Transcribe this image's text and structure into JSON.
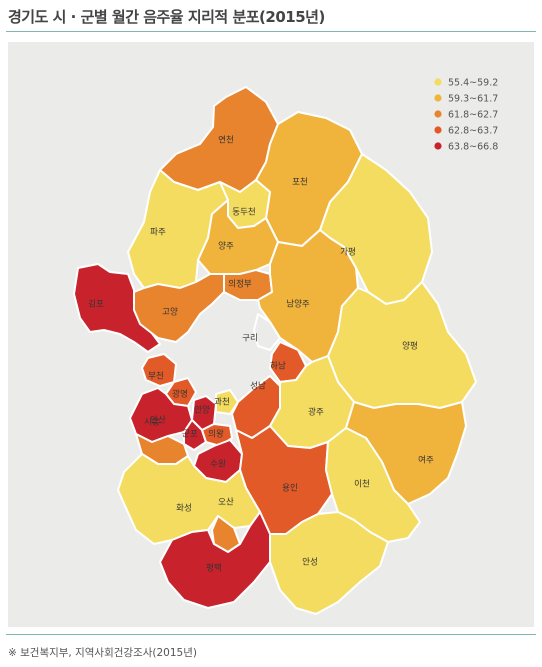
{
  "title": "경기도 시 · 군별 월간 음주율 지리적 분포(2015년)",
  "source": "※ 보건복지부, 지역사회건강조사(2015년)",
  "legend": [
    {
      "label": "55.4~59.2",
      "color": "#f3dc5f"
    },
    {
      "label": "59.3~61.7",
      "color": "#f0b43c"
    },
    {
      "label": "61.8~62.7",
      "color": "#e8842e"
    },
    {
      "label": "62.8~63.7",
      "color": "#e25a27"
    },
    {
      "label": "63.8~66.8",
      "color": "#c8232c"
    }
  ],
  "regions": [
    {
      "name": "연천",
      "class": 2
    },
    {
      "name": "포천",
      "class": 1
    },
    {
      "name": "파주",
      "class": 0
    },
    {
      "name": "동두천",
      "class": 0
    },
    {
      "name": "양주",
      "class": 1
    },
    {
      "name": "가평",
      "class": 0
    },
    {
      "name": "김포",
      "class": 4
    },
    {
      "name": "의정부",
      "class": 2
    },
    {
      "name": "고양",
      "class": 2
    },
    {
      "name": "남양주",
      "class": 1
    },
    {
      "name": "구리",
      "class": null
    },
    {
      "name": "하남",
      "class": 3
    },
    {
      "name": "부천",
      "class": 3
    },
    {
      "name": "양평",
      "class": 0
    },
    {
      "name": "광명",
      "class": 3
    },
    {
      "name": "과천",
      "class": 0
    },
    {
      "name": "안양",
      "class": 4
    },
    {
      "name": "성남",
      "class": 3
    },
    {
      "name": "시흥",
      "class": 4
    },
    {
      "name": "광주",
      "class": 0
    },
    {
      "name": "군포",
      "class": 4
    },
    {
      "name": "의왕",
      "class": 3
    },
    {
      "name": "안산",
      "class": 2
    },
    {
      "name": "수원",
      "class": 4
    },
    {
      "name": "여주",
      "class": 1
    },
    {
      "name": "용인",
      "class": 3
    },
    {
      "name": "이천",
      "class": 0
    },
    {
      "name": "화성",
      "class": 0
    },
    {
      "name": "오산",
      "class": 2
    },
    {
      "name": "평택",
      "class": 4
    },
    {
      "name": "안성",
      "class": 0
    }
  ]
}
